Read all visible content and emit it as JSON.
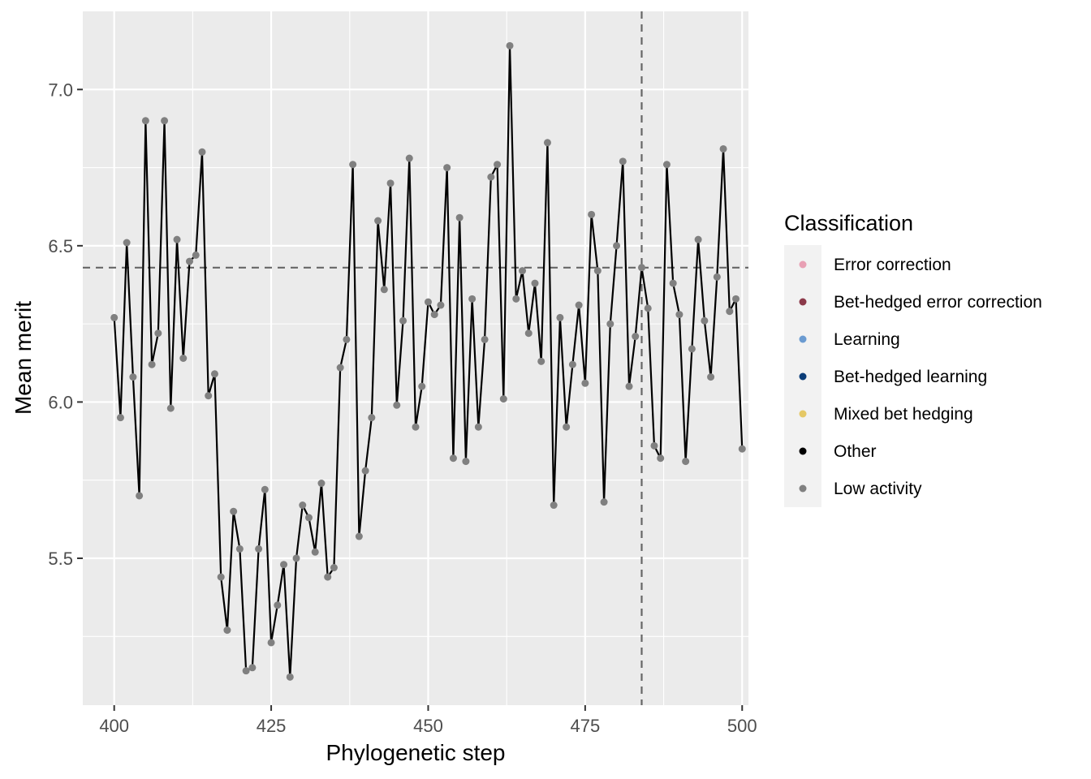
{
  "chart_data": {
    "type": "line",
    "xlabel": "Phylogenetic step",
    "ylabel": "Mean merit",
    "xlim": [
      395,
      501
    ],
    "ylim": [
      5.03,
      7.25
    ],
    "x_ticks": [
      400,
      425,
      450,
      475,
      500
    ],
    "x_tick_labels": [
      "400",
      "425",
      "450",
      "475",
      "500"
    ],
    "x_minor_ticks": [
      412.5,
      437.5,
      462.5,
      487.5
    ],
    "y_ticks": [
      5.5,
      6.0,
      6.5,
      7.0
    ],
    "y_tick_labels": [
      "5.5",
      "6.0",
      "6.5",
      "7.0"
    ],
    "y_minor_ticks": [
      5.25,
      5.75,
      6.25,
      6.75
    ],
    "grid": true,
    "reference_lines": {
      "hline_y": 6.43,
      "vline_x": 484,
      "style": "dashed",
      "color": "#666666"
    },
    "line_color": "#000000",
    "point_color": "#808080",
    "panel_background": "#ebebeb",
    "series": [
      {
        "class": "Low activity",
        "x": [
          400,
          401,
          402,
          403,
          404,
          405,
          406,
          407,
          408,
          409,
          410,
          411,
          412,
          413,
          414,
          415,
          416,
          417,
          418,
          419,
          420,
          421,
          422,
          423,
          424,
          425,
          426,
          427,
          428,
          429,
          430,
          431,
          432,
          433,
          434,
          435,
          436,
          437,
          438,
          439,
          440,
          441,
          442,
          443,
          444,
          445,
          446,
          447,
          448,
          449,
          450,
          451,
          452,
          453,
          454,
          455,
          456,
          457,
          458,
          459,
          460,
          461,
          462,
          463,
          464,
          465,
          466,
          467,
          468,
          469,
          470,
          471,
          472,
          473,
          474,
          475,
          476,
          477,
          478,
          479,
          480,
          481,
          482,
          483,
          484,
          485,
          486,
          487,
          488,
          489,
          490,
          491,
          492,
          493,
          494,
          495,
          496,
          497,
          498,
          499,
          500
        ],
        "y": [
          6.27,
          5.95,
          6.51,
          6.08,
          5.7,
          6.9,
          6.12,
          6.22,
          6.9,
          5.98,
          6.52,
          6.14,
          6.45,
          6.47,
          6.8,
          6.02,
          6.09,
          5.44,
          5.27,
          5.65,
          5.53,
          5.14,
          5.15,
          5.53,
          5.72,
          5.23,
          5.35,
          5.48,
          5.12,
          5.5,
          5.67,
          5.63,
          5.52,
          5.74,
          5.44,
          5.47,
          6.11,
          6.2,
          6.76,
          5.57,
          5.78,
          5.95,
          6.58,
          6.36,
          6.7,
          5.99,
          6.26,
          6.78,
          5.92,
          6.05,
          6.32,
          6.28,
          6.31,
          6.75,
          5.82,
          6.59,
          5.81,
          6.33,
          5.92,
          6.2,
          6.72,
          6.76,
          6.01,
          7.14,
          6.33,
          6.42,
          6.22,
          6.38,
          6.13,
          6.83,
          5.67,
          6.27,
          5.92,
          6.12,
          6.31,
          6.06,
          6.6,
          6.42,
          5.68,
          6.25,
          6.5,
          6.77,
          6.05,
          6.21,
          6.43,
          6.3,
          5.86,
          5.82,
          6.76,
          6.38,
          6.28,
          5.81,
          6.17,
          6.52,
          6.26,
          6.08,
          6.4,
          6.81,
          6.29,
          6.33,
          5.85
        ]
      }
    ],
    "legend": {
      "title": "Classification",
      "placement": "right",
      "entries": [
        {
          "label": "Error correction",
          "color": "#e8a0b4"
        },
        {
          "label": "Bet-hedged error correction",
          "color": "#8c3a4a"
        },
        {
          "label": "Learning",
          "color": "#6b9bd1"
        },
        {
          "label": "Bet-hedged learning",
          "color": "#0b3d78"
        },
        {
          "label": "Mixed bet hedging",
          "color": "#e5c866"
        },
        {
          "label": "Other",
          "color": "#000000"
        },
        {
          "label": "Low activity",
          "color": "#808080"
        }
      ]
    }
  }
}
